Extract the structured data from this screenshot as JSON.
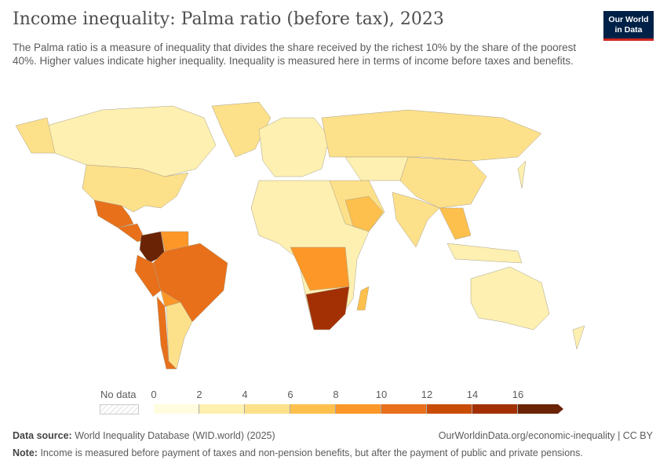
{
  "header": {
    "title": "Income inequality: Palma ratio (before tax), 2023",
    "subtitle": "The Palma ratio is a measure of inequality that divides the share received by the richest 10% by the share of the poorest 40%. Higher values indicate higher inequality. Inequality is measured here in terms of income before taxes and benefits.",
    "logo": "Our World in Data"
  },
  "legend": {
    "no_data_label": "No data",
    "ticks": [
      "0",
      "2",
      "4",
      "6",
      "8",
      "10",
      "12",
      "14",
      "16"
    ],
    "colors": [
      "#fffce0",
      "#fef0b0",
      "#fde08a",
      "#fec04c",
      "#fc9728",
      "#e8701a",
      "#c94c05",
      "#a33005",
      "#6b2306"
    ]
  },
  "map_regions": [
    {
      "name": "Greenland",
      "value": 5
    },
    {
      "name": "Canada",
      "value": 3
    },
    {
      "name": "Alaska (USA)",
      "value": 4.5
    },
    {
      "name": "United States",
      "value": 4.5
    },
    {
      "name": "Mexico",
      "value": 11
    },
    {
      "name": "Central America",
      "value": 11
    },
    {
      "name": "Colombia",
      "value": 17
    },
    {
      "name": "Venezuela",
      "value": 9
    },
    {
      "name": "Peru",
      "value": 10
    },
    {
      "name": "Brazil",
      "value": 11
    },
    {
      "name": "Bolivia",
      "value": 8
    },
    {
      "name": "Chile",
      "value": 10
    },
    {
      "name": "Argentina",
      "value": 4.5
    },
    {
      "name": "Europe",
      "value": 3
    },
    {
      "name": "Russia",
      "value": 5
    },
    {
      "name": "Kazakhstan",
      "value": 3
    },
    {
      "name": "China",
      "value": 5
    },
    {
      "name": "Middle East",
      "value": 5
    },
    {
      "name": "Saudi Arabia",
      "value": 7
    },
    {
      "name": "India",
      "value": 5
    },
    {
      "name": "Southeast Asia",
      "value": 7
    },
    {
      "name": "Indonesia",
      "value": 3
    },
    {
      "name": "North Africa",
      "value": 3
    },
    {
      "name": "Central Africa",
      "value": 9
    },
    {
      "name": "Southern Africa",
      "value": 15
    },
    {
      "name": "Madagascar",
      "value": 7
    },
    {
      "name": "Australia",
      "value": 3
    },
    {
      "name": "New Zealand",
      "value": 3
    },
    {
      "name": "Japan",
      "value": 3
    }
  ],
  "footer": {
    "source_label": "Data source:",
    "source": "World Inequality Database (WID.world) (2025)",
    "url": "OurWorldinData.org/economic-inequality | CC BY",
    "note_label": "Note:",
    "note": "Income is measured before payment of taxes and non-pension benefits, but after the payment of public and private pensions."
  }
}
